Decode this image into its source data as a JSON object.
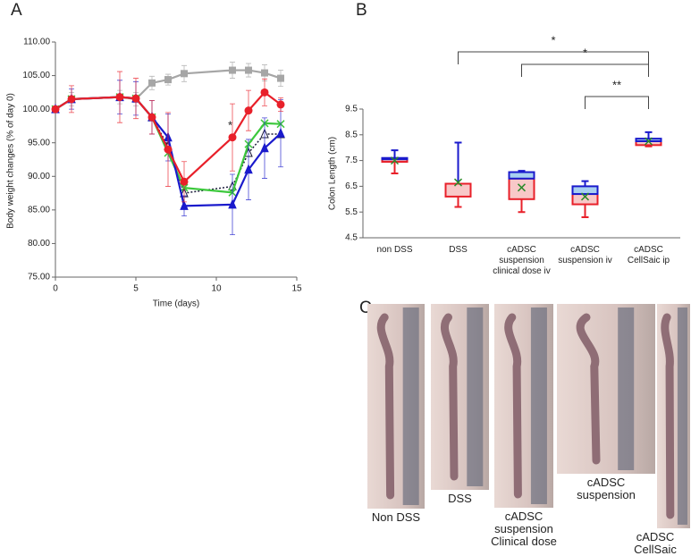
{
  "panels": [
    "A",
    "B",
    "C"
  ],
  "chart_data": [
    {
      "type": "line",
      "ylabel": "Body weight changes (% of day 0)",
      "xlabel": "Time (days)",
      "x": [
        0,
        1,
        4,
        5,
        6,
        7,
        8,
        11,
        12,
        13,
        14
      ],
      "xlim": [
        0,
        15
      ],
      "xticks": [
        0,
        5,
        10,
        15
      ],
      "ylim": [
        75,
        110
      ],
      "yticks": [
        {
          "value": 75,
          "label": "75.00"
        },
        {
          "value": 80,
          "label": "80.00"
        },
        {
          "value": 85,
          "label": "85.00"
        },
        {
          "value": 90,
          "label": "90.00"
        },
        {
          "value": 95,
          "label": "95.00"
        },
        {
          "value": 100,
          "label": "100.00"
        },
        {
          "value": 105,
          "label": "105.00"
        },
        {
          "value": 110,
          "label": "110.00"
        }
      ],
      "series": [
        {
          "color": "#a6a6a6",
          "marker": "square",
          "dash": false,
          "values": [
            100,
            101.5,
            101.8,
            101.5,
            103.9,
            104.4,
            105.3,
            105.8,
            105.8,
            105.4,
            104.6
          ],
          "errors": [
            0.3,
            1.0,
            1.0,
            1.0,
            1.0,
            0.8,
            1.2,
            1.2,
            1.0,
            1.2,
            1.2
          ]
        },
        {
          "color": "#1a1a3a",
          "marker": "open-triangle",
          "dash": true,
          "values": [
            null,
            null,
            null,
            null,
            98.8,
            94.5,
            87.5,
            88.5,
            93.5,
            96.3,
            96.3
          ],
          "errors": null
        },
        {
          "color": "#3cc83c",
          "marker": "cross",
          "dash": false,
          "values": [
            100,
            101.5,
            101.8,
            101.6,
            98.8,
            93.5,
            88.3,
            87.6,
            94.8,
            97.9,
            97.8
          ],
          "errors": null
        },
        {
          "color": "#1a1acc",
          "marker": "triangle",
          "dash": false,
          "values": [
            100,
            101.5,
            101.8,
            101.6,
            98.8,
            95.8,
            85.6,
            85.8,
            91.0,
            94.2,
            96.4
          ],
          "errors": [
            0.3,
            1.5,
            2.5,
            2.5,
            2.5,
            3.5,
            1.5,
            4.5,
            4.5,
            4.5,
            5.0
          ]
        },
        {
          "color": "#e8202a",
          "marker": "circle",
          "dash": false,
          "values": [
            100,
            101.5,
            101.8,
            101.6,
            98.8,
            94.0,
            89.2,
            95.8,
            99.8,
            102.5,
            100.7
          ],
          "errors": [
            0.3,
            2.0,
            3.8,
            3.0,
            2.5,
            5.5,
            3.0,
            5.0,
            3.0,
            2.0,
            1.0
          ]
        }
      ],
      "annotations": [
        {
          "text": "*",
          "x": 11,
          "y": 97.5
        }
      ]
    },
    {
      "type": "box",
      "ylabel": "Colon Length (cm)",
      "categories": [
        "non DSS",
        "DSS",
        "cADSC suspension clinical dose iv",
        "cADSC suspension iv",
        "cADSC CellSaic ip"
      ],
      "ylim": [
        4.5,
        9.5
      ],
      "yticks": [
        4.5,
        5.5,
        6.5,
        7.5,
        8.5,
        9.5
      ],
      "min": [
        7.0,
        5.7,
        5.5,
        5.3,
        8.05
      ],
      "q1": [
        7.45,
        6.1,
        6.0,
        5.8,
        8.1
      ],
      "median": [
        7.55,
        6.6,
        6.8,
        6.2,
        8.25
      ],
      "q3": [
        7.6,
        6.6,
        7.05,
        6.5,
        8.35
      ],
      "max": [
        7.9,
        8.2,
        7.1,
        6.7,
        8.6
      ],
      "mean": [
        7.5,
        6.65,
        6.45,
        6.1,
        8.25
      ],
      "lower_color": "#e8202a",
      "upper_color": "#1a1acc",
      "mean_color": "#2a8a2a",
      "comparisons": [
        {
          "pair": [
            1,
            4
          ],
          "label": "*"
        },
        {
          "pair": [
            2,
            4
          ],
          "label": "*"
        },
        {
          "pair": [
            3,
            4
          ],
          "label": "**"
        }
      ]
    }
  ],
  "photos": [
    "Non DSS",
    "DSS",
    "cADSC suspension Clinical dose",
    "cADSC suspension",
    "cADSC CellSaic"
  ]
}
